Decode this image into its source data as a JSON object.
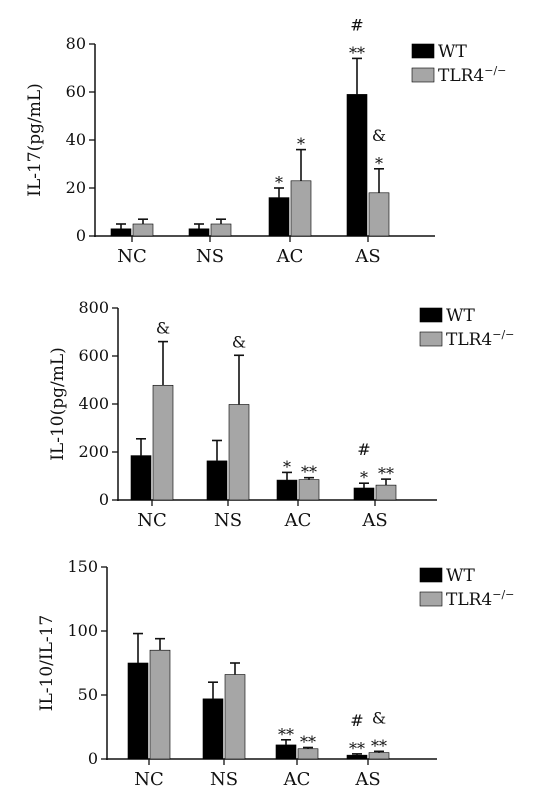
{
  "chart_data": [
    {
      "type": "bar",
      "title": "",
      "xlabel": "",
      "ylabel": "IL-17(pg/mL)",
      "ylim": [
        0,
        80
      ],
      "yticks": [
        "0",
        "20",
        "40",
        "60",
        "80"
      ],
      "categories": [
        "NC",
        "NS",
        "AC",
        "AS"
      ],
      "legend_position": "top-right",
      "series": [
        {
          "name": "WT",
          "color": "#000000",
          "values": [
            3,
            3,
            16,
            59
          ],
          "errors": [
            2,
            2,
            4,
            15
          ]
        },
        {
          "name": "TLR4",
          "legend_superscript": "−/−",
          "color": "#a6a6a6",
          "values": [
            5,
            5,
            23,
            18
          ],
          "errors": [
            2,
            2,
            13,
            10
          ]
        }
      ],
      "annotations": [
        {
          "category": 2,
          "series": 0,
          "lines": [
            "*"
          ]
        },
        {
          "category": 2,
          "series": 1,
          "lines": [
            "*"
          ]
        },
        {
          "category": 3,
          "series": 0,
          "lines": [
            "#",
            "**"
          ]
        },
        {
          "category": 3,
          "series": 1,
          "lines": [
            "&",
            "*"
          ]
        }
      ]
    },
    {
      "type": "bar",
      "title": "",
      "xlabel": "",
      "ylabel": "IL-10(pg/mL)",
      "ylim": [
        0,
        800
      ],
      "yticks": [
        "0",
        "200",
        "400",
        "600",
        "800"
      ],
      "categories": [
        "NC",
        "NS",
        "AC",
        "AS"
      ],
      "legend_position": "top-right",
      "series": [
        {
          "name": "WT",
          "color": "#000000",
          "values": [
            185,
            163,
            83,
            50
          ],
          "errors": [
            70,
            85,
            32,
            20
          ]
        },
        {
          "name": "TLR4",
          "legend_superscript": "−/−",
          "color": "#a6a6a6",
          "values": [
            478,
            398,
            85,
            62
          ],
          "errors": [
            182,
            205,
            8,
            25
          ]
        }
      ],
      "annotations": [
        {
          "category": 0,
          "series": 1,
          "lines": [
            "&"
          ]
        },
        {
          "category": 1,
          "series": 1,
          "lines": [
            "&"
          ]
        },
        {
          "category": 2,
          "series": 0,
          "lines": [
            "*"
          ]
        },
        {
          "category": 2,
          "series": 1,
          "lines": [
            "**"
          ]
        },
        {
          "category": 3,
          "series": 0,
          "lines": [
            "#",
            "*"
          ]
        },
        {
          "category": 3,
          "series": 1,
          "lines": [
            "**"
          ]
        }
      ]
    },
    {
      "type": "bar",
      "title": "",
      "xlabel": "",
      "ylabel": "IL-10/IL-17",
      "ylim": [
        0,
        150
      ],
      "yticks": [
        "0",
        "50",
        "100",
        "150"
      ],
      "categories": [
        "NC",
        "NS",
        "AC",
        "AS"
      ],
      "legend_position": "top-right",
      "series": [
        {
          "name": "WT",
          "color": "#000000",
          "values": [
            75,
            47,
            11,
            3
          ],
          "errors": [
            23,
            13,
            4,
            1
          ]
        },
        {
          "name": "TLR4",
          "legend_superscript": "−/−",
          "color": "#a6a6a6",
          "values": [
            85,
            66,
            8,
            5
          ],
          "errors": [
            9,
            9,
            1,
            1
          ]
        }
      ],
      "annotations": [
        {
          "category": 2,
          "series": 0,
          "lines": [
            "**"
          ]
        },
        {
          "category": 2,
          "series": 1,
          "lines": [
            "**"
          ]
        },
        {
          "category": 3,
          "series": 0,
          "lines": [
            "#",
            "**"
          ]
        },
        {
          "category": 3,
          "series": 1,
          "lines": [
            "&",
            "**"
          ]
        }
      ]
    }
  ]
}
